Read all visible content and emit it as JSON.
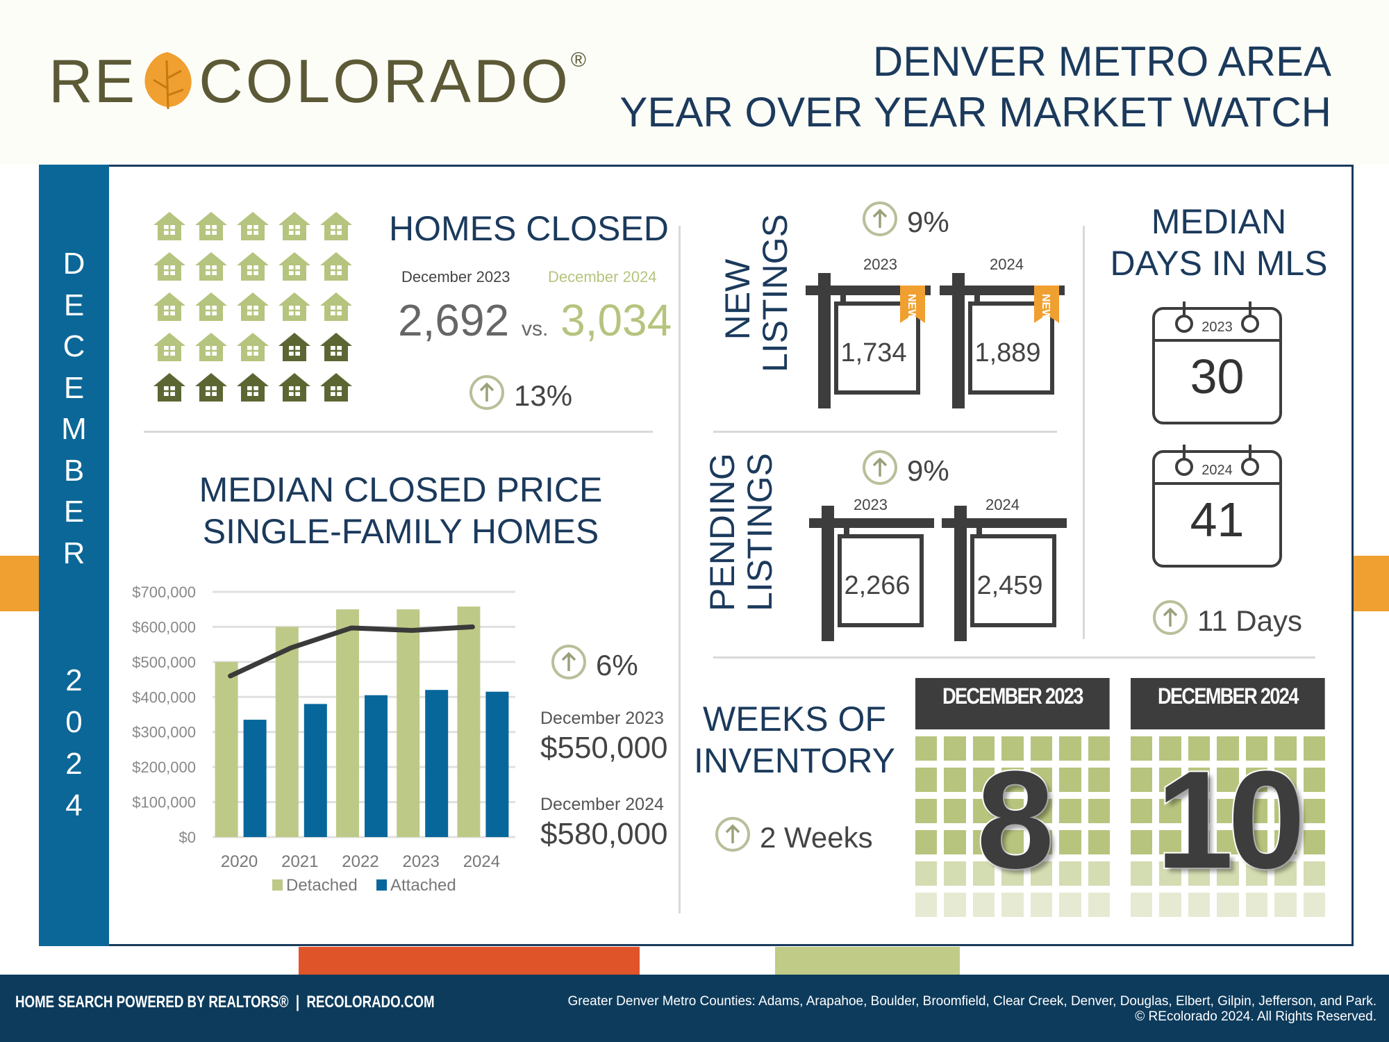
{
  "header": {
    "logo_text_left": "RE",
    "logo_text_right": "COLORADO",
    "logo_reg": "®",
    "title_line1": "DENVER METRO AREA",
    "title_line2": "YEAR OVER YEAR MARKET WATCH"
  },
  "side": {
    "month_letters": [
      "D",
      "E",
      "C",
      "E",
      "M",
      "B",
      "E",
      "R"
    ],
    "year_digits": [
      "2",
      "0",
      "2",
      "4"
    ]
  },
  "homes_closed": {
    "title": "HOMES CLOSED",
    "label_2023": "December 2023",
    "label_2024": "December 2024",
    "value_2023": "2,692",
    "vs": "vs.",
    "value_2024": "3,034",
    "change": "13%",
    "change_direction": "up",
    "icons": {
      "total": 25,
      "highlighted": 18
    }
  },
  "median_price": {
    "title_line1": "MEDIAN CLOSED PRICE",
    "title_line2": "SINGLE-FAMILY HOMES",
    "change": "6%",
    "change_direction": "up",
    "label_2023": "December 2023",
    "value_2023": "$550,000",
    "label_2024": "December 2024",
    "value_2024": "$580,000"
  },
  "chart_data": {
    "type": "bar",
    "categories": [
      "2020",
      "2021",
      "2022",
      "2023",
      "2024"
    ],
    "series": [
      {
        "name": "Detached",
        "type": "bar",
        "color": "#bdc986",
        "values": [
          500000,
          600000,
          650000,
          650000,
          658000
        ]
      },
      {
        "name": "Attached",
        "type": "bar",
        "color": "#07679b",
        "values": [
          335000,
          380000,
          405000,
          420000,
          415000
        ]
      },
      {
        "type": "line",
        "color": "#3a3a3a",
        "values": [
          460000,
          540000,
          597000,
          590000,
          600000
        ]
      }
    ],
    "yticks": [
      "$0",
      "$100,000",
      "$200,000",
      "$300,000",
      "$400,000",
      "$500,000",
      "$600,000",
      "$700,000"
    ],
    "ylim": [
      0,
      700000
    ],
    "grid": true,
    "legend": "bottom"
  },
  "new_listings": {
    "title_line1": "NEW",
    "title_line2": "LISTINGS",
    "change": "9%",
    "change_direction": "up",
    "label_2023": "2023",
    "label_2024": "2024",
    "value_2023": "1,734",
    "value_2024": "1,889",
    "ribbon": "NEW!"
  },
  "pending_listings": {
    "title_line1": "PENDING",
    "title_line2": "LISTINGS",
    "change": "9%",
    "change_direction": "up",
    "label_2023": "2023",
    "label_2024": "2024",
    "value_2023": "2,266",
    "value_2024": "2,459"
  },
  "days_in_mls": {
    "title_line1": "MEDIAN",
    "title_line2": "DAYS IN MLS",
    "label_2023": "2023",
    "value_2023": "30",
    "label_2024": "2024",
    "value_2024": "41",
    "change": "11 Days",
    "change_direction": "up"
  },
  "weeks_inventory": {
    "title_line1": "WEEKS OF",
    "title_line2": "INVENTORY",
    "change": "2 Weeks",
    "change_direction": "up",
    "label_2023": "DECEMBER 2023",
    "value_2023": "8",
    "label_2024": "DECEMBER 2024",
    "value_2024": "10"
  },
  "footer": {
    "left": "HOME SEARCH POWERED BY REALTORS®",
    "site": "RECOLORADO.COM",
    "counties": "Greater Denver Metro Counties: Adams, Arapahoe, Boulder, Broomfield, Clear Creek, Denver, Douglas, Elbert, Gilpin, Jefferson, and Park.",
    "copyright": "© REcolorado 2024. All Rights Reserved."
  },
  "colors": {
    "navy": "#1b3a5c",
    "blue": "#0b6797",
    "green": "#bdc986",
    "dark_green": "#5b6633",
    "orange": "#f0a030",
    "red_orange": "#e0542a",
    "footer": "#0d3b5c"
  }
}
